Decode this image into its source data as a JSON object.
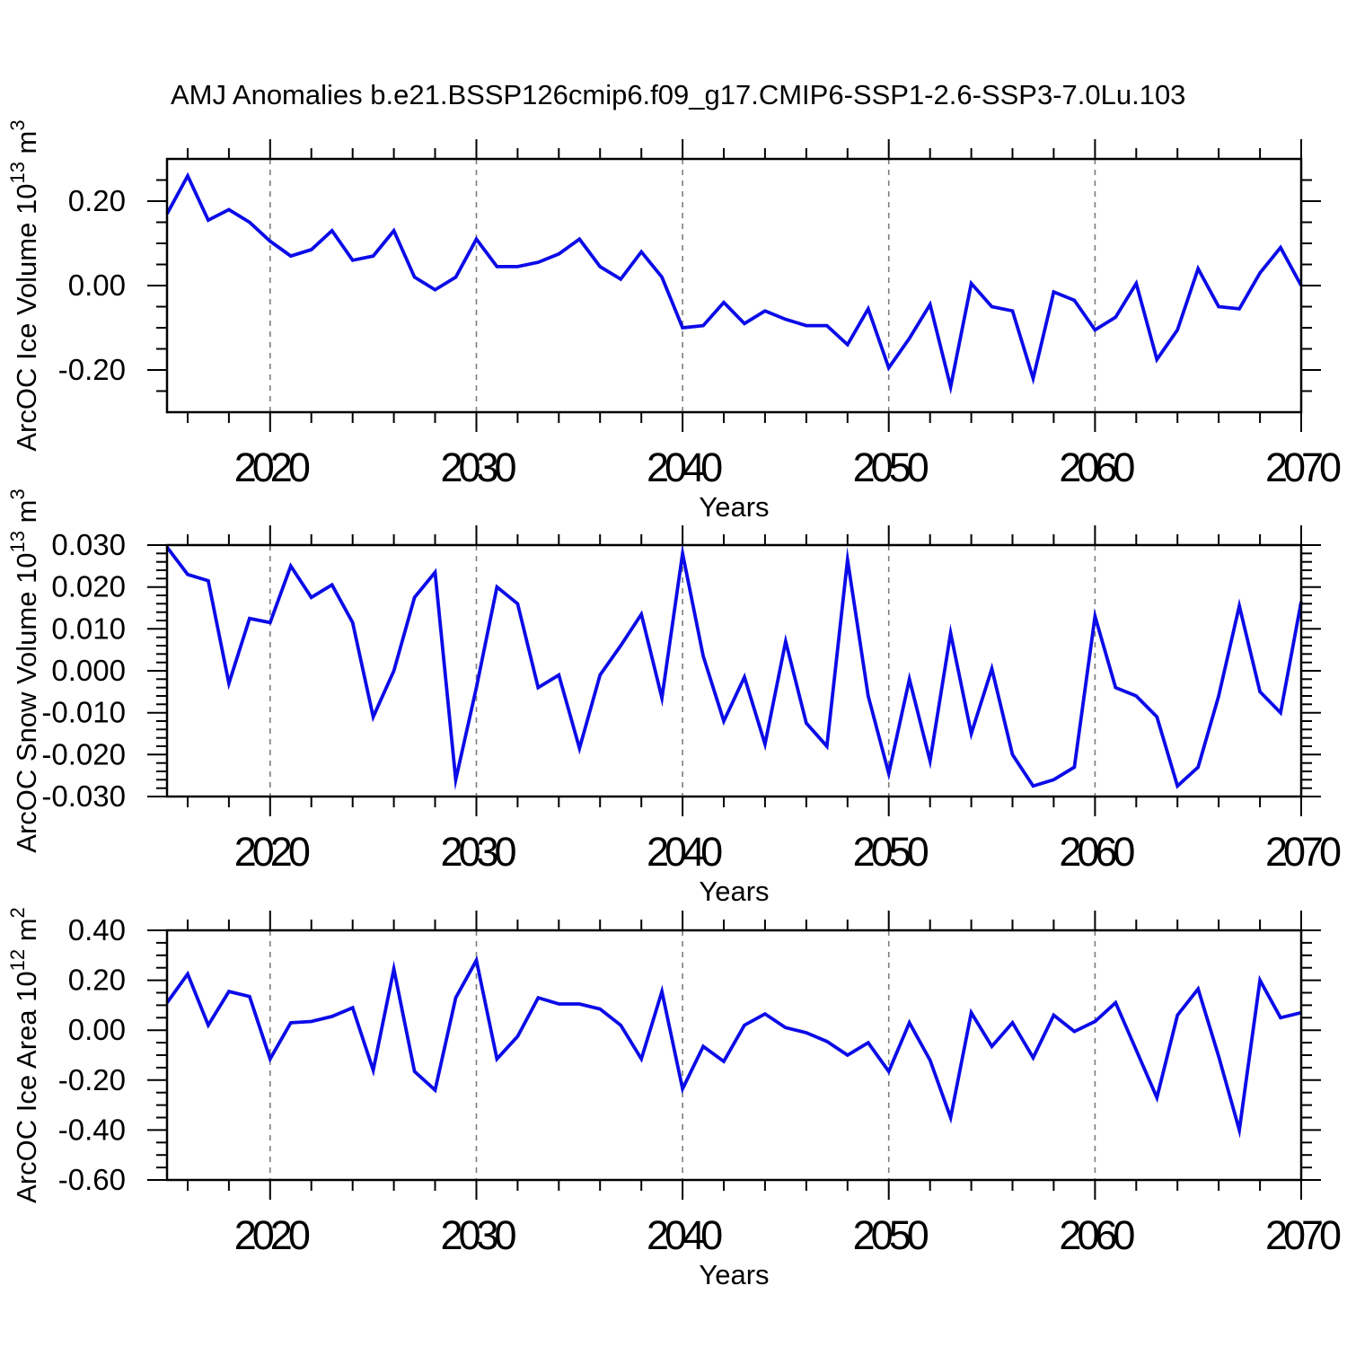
{
  "title": "AMJ Anomalies b.e21.BSSP126cmip6.f09_g17.CMIP6-SSP1-2.6-SSP3-7.0Lu.103",
  "colors": {
    "line": "#0b0be8",
    "grid": "#7d7d7d",
    "axis": "#000000",
    "background": "#ffffff"
  },
  "chart_data": [
    {
      "type": "line",
      "name": "arcoc-ice-volume",
      "ylabel_parts": [
        [
          "ArcOC Ice Volume 10",
          false
        ],
        [
          "13",
          true
        ],
        [
          " m",
          false
        ],
        [
          "3",
          true
        ]
      ],
      "xlabel": "Years",
      "xlim": [
        2015,
        2070
      ],
      "ylim": [
        -0.3,
        0.3
      ],
      "x_start": 2015,
      "x_step": 1,
      "x_ticks": [
        2020,
        2030,
        2040,
        2050,
        2060,
        2070
      ],
      "x_tick_labels": [
        "2020",
        "2030",
        "2040",
        "2050",
        "2060",
        "2070"
      ],
      "x_minor_step": 2,
      "x_grid": [
        2020,
        2030,
        2040,
        2050,
        2060
      ],
      "grid_on": true,
      "y_ticks": [
        0.2,
        0.0,
        -0.2
      ],
      "y_tick_labels": [
        "0.20",
        "0.00",
        "-0.20"
      ],
      "y_minor_step": 0.05,
      "values": [
        0.17,
        0.26,
        0.155,
        0.18,
        0.15,
        0.105,
        0.07,
        0.085,
        0.13,
        0.06,
        0.07,
        0.13,
        0.02,
        -0.01,
        0.02,
        0.11,
        0.045,
        0.045,
        0.055,
        0.075,
        0.11,
        0.045,
        0.015,
        0.08,
        0.02,
        -0.1,
        -0.095,
        -0.04,
        -0.09,
        -0.06,
        -0.08,
        -0.095,
        -0.095,
        -0.14,
        -0.055,
        -0.195,
        -0.125,
        -0.045,
        -0.24,
        0.005,
        -0.05,
        -0.06,
        -0.22,
        -0.015,
        -0.035,
        -0.105,
        -0.075,
        0.005,
        -0.175,
        -0.105,
        0.04,
        -0.05,
        -0.055,
        0.03,
        0.09,
        0.0
      ]
    },
    {
      "type": "line",
      "name": "arcoc-snow-volume",
      "ylabel_parts": [
        [
          "ArcOC Snow Volume 10",
          false
        ],
        [
          "13",
          true
        ],
        [
          " m",
          false
        ],
        [
          "3",
          true
        ]
      ],
      "xlabel": "Years",
      "xlim": [
        2015,
        2070
      ],
      "ylim": [
        -0.03,
        0.03
      ],
      "x_start": 2015,
      "x_step": 1,
      "x_ticks": [
        2020,
        2030,
        2040,
        2050,
        2060,
        2070
      ],
      "x_tick_labels": [
        "2020",
        "2030",
        "2040",
        "2050",
        "2060",
        "2070"
      ],
      "x_minor_step": 2,
      "x_grid": [
        2020,
        2030,
        2040,
        2050,
        2060
      ],
      "grid_on": true,
      "y_ticks": [
        0.03,
        0.02,
        0.01,
        0.0,
        -0.01,
        -0.02,
        -0.03
      ],
      "y_tick_labels": [
        "0.030",
        "0.020",
        "0.010",
        "0.000",
        "-0.010",
        "-0.020",
        "-0.030"
      ],
      "y_minor_step": 0.002,
      "values": [
        0.0295,
        0.023,
        0.0215,
        -0.003,
        0.0125,
        0.0115,
        0.025,
        0.0175,
        0.0205,
        0.0115,
        -0.011,
        0.0,
        0.0175,
        0.0235,
        -0.026,
        -0.004,
        0.02,
        0.016,
        -0.004,
        -0.001,
        -0.0185,
        -0.001,
        0.006,
        0.0135,
        -0.0065,
        0.028,
        0.0035,
        -0.012,
        -0.0015,
        -0.0175,
        0.007,
        -0.0125,
        -0.018,
        0.0265,
        -0.006,
        -0.0245,
        -0.002,
        -0.0215,
        0.009,
        -0.015,
        0.0005,
        -0.02,
        -0.0275,
        -0.026,
        -0.023,
        0.013,
        -0.004,
        -0.006,
        -0.011,
        -0.0275,
        -0.023,
        -0.006,
        0.0155,
        -0.005,
        -0.01,
        0.0165
      ]
    },
    {
      "type": "line",
      "name": "arcoc-ice-area",
      "ylabel_parts": [
        [
          "ArcOC Ice Area 10",
          false
        ],
        [
          "12",
          true
        ],
        [
          " m",
          false
        ],
        [
          "2",
          true
        ]
      ],
      "xlabel": "Years",
      "xlim": [
        2015,
        2070
      ],
      "ylim": [
        -0.6,
        0.4
      ],
      "x_start": 2015,
      "x_step": 1,
      "x_ticks": [
        2020,
        2030,
        2040,
        2050,
        2060,
        2070
      ],
      "x_tick_labels": [
        "2020",
        "2030",
        "2040",
        "2050",
        "2060",
        "2070"
      ],
      "x_minor_step": 2,
      "x_grid": [
        2020,
        2030,
        2040,
        2050,
        2060
      ],
      "grid_on": true,
      "y_ticks": [
        0.4,
        0.2,
        0.0,
        -0.2,
        -0.4,
        -0.6
      ],
      "y_tick_labels": [
        "0.40",
        "0.20",
        "0.00",
        "-0.20",
        "-0.40",
        "-0.60"
      ],
      "y_minor_step": 0.05,
      "values": [
        0.11,
        0.225,
        0.02,
        0.155,
        0.135,
        -0.115,
        0.03,
        0.035,
        0.055,
        0.09,
        -0.16,
        0.245,
        -0.165,
        -0.24,
        0.13,
        0.28,
        -0.115,
        -0.025,
        0.13,
        0.105,
        0.105,
        0.085,
        0.02,
        -0.115,
        0.155,
        -0.235,
        -0.065,
        -0.125,
        0.02,
        0.065,
        0.01,
        -0.01,
        -0.045,
        -0.1,
        -0.05,
        -0.165,
        0.03,
        -0.12,
        -0.35,
        0.07,
        -0.065,
        0.03,
        -0.11,
        0.06,
        -0.005,
        0.035,
        0.11,
        -0.08,
        -0.27,
        0.06,
        0.165,
        -0.105,
        -0.4,
        0.2,
        0.05,
        0.07
      ]
    }
  ]
}
